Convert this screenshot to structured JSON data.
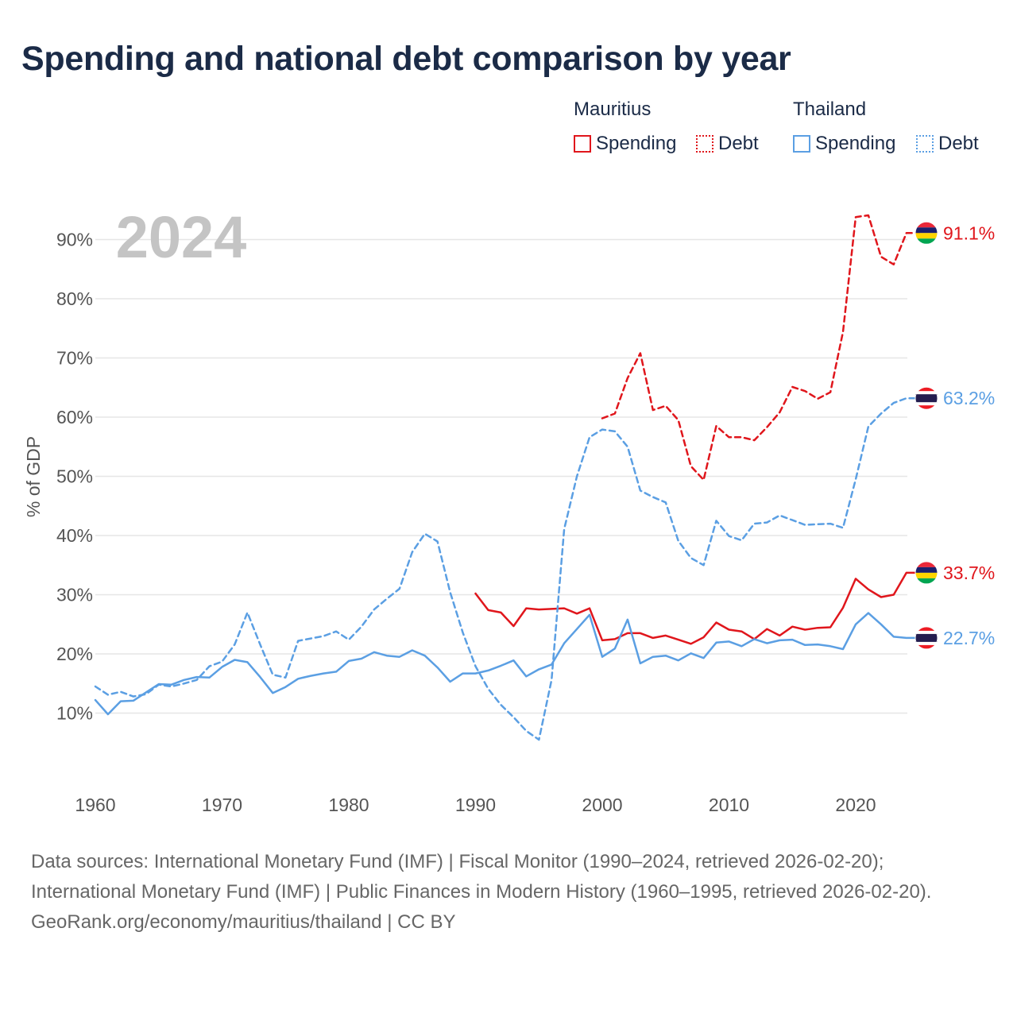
{
  "title": "Spending and national debt comparison by year",
  "legend": {
    "groups": [
      {
        "name": "Mauritius",
        "items": [
          "Spending",
          "Debt"
        ]
      },
      {
        "name": "Thailand",
        "items": [
          "Spending",
          "Debt"
        ]
      }
    ]
  },
  "colors": {
    "mauritius": "#e0161c",
    "thailand": "#5b9fe3"
  },
  "year_label": "2024",
  "end_labels": {
    "mauritius_debt": "91.1%",
    "thailand_debt": "63.2%",
    "mauritius_spending": "33.7%",
    "thailand_spending": "22.7%"
  },
  "chart_data": {
    "type": "line",
    "title": "Spending and national debt comparison by year",
    "xlabel": "",
    "ylabel": "% of GDP",
    "xlim": [
      1960,
      2025
    ],
    "ylim": [
      0,
      95
    ],
    "x_ticks": [
      1960,
      1970,
      1980,
      1990,
      2000,
      2010,
      2020
    ],
    "x_tick_labels": [
      "1960",
      "1970",
      "1980",
      "1990",
      "2000",
      "2010",
      "2020"
    ],
    "y_ticks": [
      10,
      20,
      30,
      40,
      50,
      60,
      70,
      80,
      90
    ],
    "y_tick_labels": [
      "10%",
      "20%",
      "30%",
      "40%",
      "50%",
      "60%",
      "70%",
      "80%",
      "90%"
    ],
    "grid": true,
    "series": [
      {
        "name": "Mauritius Spending",
        "country": "Mauritius",
        "measure": "Spending",
        "style": "solid",
        "x": [
          1990,
          1991,
          1992,
          1993,
          1994,
          1995,
          1996,
          1997,
          1998,
          1999,
          2000,
          2001,
          2002,
          2003,
          2004,
          2005,
          2006,
          2007,
          2008,
          2009,
          2010,
          2011,
          2012,
          2013,
          2014,
          2015,
          2016,
          2017,
          2018,
          2019,
          2020,
          2021,
          2022,
          2023,
          2024,
          2025
        ],
        "values": [
          30.2,
          27.4,
          27.0,
          24.7,
          27.7,
          27.5,
          27.6,
          27.7,
          26.8,
          27.7,
          22.3,
          22.5,
          23.5,
          23.5,
          22.7,
          23.1,
          22.4,
          21.7,
          22.8,
          25.3,
          24.1,
          23.8,
          22.5,
          24.2,
          23.1,
          24.6,
          24.1,
          24.4,
          24.5,
          27.8,
          32.7,
          30.9,
          29.6,
          30.0,
          33.7,
          33.7
        ]
      },
      {
        "name": "Mauritius Debt",
        "country": "Mauritius",
        "measure": "Debt",
        "style": "dashed",
        "x": [
          2000,
          2001,
          2002,
          2003,
          2004,
          2005,
          2006,
          2007,
          2008,
          2009,
          2010,
          2011,
          2012,
          2013,
          2014,
          2015,
          2016,
          2017,
          2018,
          2019,
          2020,
          2021,
          2022,
          2023,
          2024,
          2025
        ],
        "values": [
          59.8,
          60.6,
          66.6,
          70.8,
          61.2,
          61.9,
          59.5,
          51.7,
          49.4,
          58.5,
          56.6,
          56.6,
          56.1,
          58.3,
          60.8,
          65.1,
          64.4,
          63.1,
          64.2,
          74.4,
          93.8,
          94.1,
          87.1,
          85.8,
          91.1,
          91.1
        ]
      },
      {
        "name": "Thailand Spending",
        "country": "Thailand",
        "measure": "Spending",
        "style": "solid",
        "x": [
          1960,
          1961,
          1962,
          1963,
          1964,
          1965,
          1966,
          1967,
          1968,
          1969,
          1970,
          1971,
          1972,
          1973,
          1974,
          1975,
          1976,
          1977,
          1978,
          1979,
          1980,
          1981,
          1982,
          1983,
          1984,
          1985,
          1986,
          1987,
          1988,
          1989,
          1990,
          1991,
          1992,
          1993,
          1994,
          1995,
          1996,
          1997,
          1998,
          1999,
          2000,
          2001,
          2002,
          2003,
          2004,
          2005,
          2006,
          2007,
          2008,
          2009,
          2010,
          2011,
          2012,
          2013,
          2014,
          2015,
          2016,
          2017,
          2018,
          2019,
          2020,
          2021,
          2022,
          2023,
          2024,
          2025
        ],
        "values": [
          12.2,
          9.8,
          12.0,
          12.1,
          13.5,
          14.9,
          14.8,
          15.6,
          16.1,
          16.0,
          17.8,
          19.0,
          18.6,
          16.1,
          13.4,
          14.4,
          15.8,
          16.3,
          16.7,
          17.0,
          18.8,
          19.2,
          20.3,
          19.7,
          19.5,
          20.6,
          19.7,
          17.7,
          15.3,
          16.7,
          16.7,
          17.2,
          18.0,
          18.9,
          16.2,
          17.4,
          18.2,
          21.8,
          24.2,
          26.6,
          19.5,
          20.9,
          25.8,
          18.4,
          19.5,
          19.7,
          18.9,
          20.1,
          19.3,
          21.9,
          22.1,
          21.3,
          22.5,
          21.8,
          22.3,
          22.4,
          21.5,
          21.6,
          21.3,
          20.8,
          25.0,
          26.9,
          25.0,
          22.9,
          22.7,
          22.7
        ]
      },
      {
        "name": "Thailand Debt",
        "country": "Thailand",
        "measure": "Debt",
        "style": "dashed",
        "x": [
          1960,
          1961,
          1962,
          1963,
          1964,
          1965,
          1966,
          1967,
          1968,
          1969,
          1970,
          1971,
          1972,
          1973,
          1974,
          1975,
          1976,
          1977,
          1978,
          1979,
          1980,
          1981,
          1982,
          1983,
          1984,
          1985,
          1986,
          1987,
          1988,
          1989,
          1990,
          1991,
          1992,
          1993,
          1994,
          1995,
          1996,
          1997,
          1998,
          1999,
          2000,
          2001,
          2002,
          2003,
          2004,
          2005,
          2006,
          2007,
          2008,
          2009,
          2010,
          2011,
          2012,
          2013,
          2014,
          2015,
          2016,
          2017,
          2018,
          2019,
          2020,
          2021,
          2022,
          2023,
          2024,
          2025
        ],
        "values": [
          14.5,
          13.1,
          13.6,
          12.8,
          13.2,
          14.8,
          14.5,
          15.0,
          15.6,
          17.9,
          18.7,
          21.6,
          27.0,
          21.6,
          16.5,
          16.0,
          22.2,
          22.6,
          23.0,
          23.8,
          22.4,
          24.6,
          27.5,
          29.3,
          31.0,
          37.2,
          40.3,
          39.0,
          30.4,
          23.6,
          17.9,
          14.1,
          11.4,
          9.3,
          7.0,
          5.5,
          15.6,
          41.1,
          50.0,
          56.6,
          57.9,
          57.6,
          55.0,
          47.6,
          46.5,
          45.6,
          39.1,
          36.2,
          35.0,
          42.5,
          39.9,
          39.2,
          42.0,
          42.2,
          43.4,
          42.6,
          41.8,
          41.9,
          42.0,
          41.3,
          49.5,
          58.4,
          60.6,
          62.4,
          63.2,
          63.2
        ]
      }
    ]
  },
  "footer": {
    "sources": "Data sources: International Monetary Fund (IMF) | Fiscal Monitor (1990–2024, retrieved 2026-02-20); International Monetary Fund (IMF) | Public Finances in Modern History (1960–1995, retrieved 2026-02-20).",
    "credit": "GeoRank.org/economy/mauritius/thailand | CC BY"
  }
}
